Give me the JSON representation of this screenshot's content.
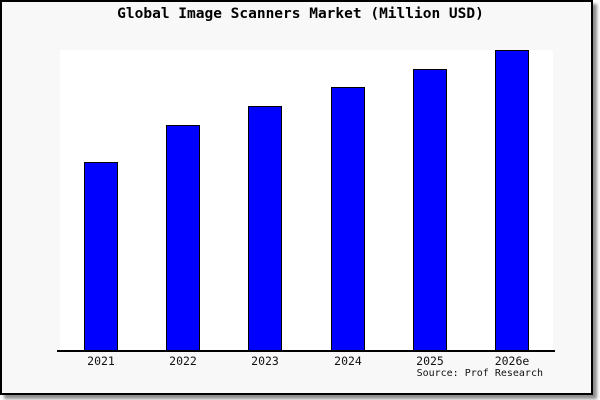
{
  "title": "Global Image Scanners Market (Million USD)",
  "source_note": "Source: Prof Research",
  "colors": {
    "page_background": "#f8f8f8",
    "plot_background": "#ffffff",
    "frame_border": "#000000",
    "axis": "#000000",
    "text": "#000000"
  },
  "chart_data": {
    "type": "bar",
    "title": "Global Image Scanners Market (Million USD)",
    "unit": "Million USD",
    "categories": [
      "2021",
      "2022",
      "2023",
      "2024",
      "2025",
      "2026e"
    ],
    "values_percent_of_max": [
      62.8,
      75.2,
      81.5,
      87.7,
      93.7,
      100
    ],
    "value_labels_shown": false,
    "xlabel": "",
    "ylabel": "",
    "y_axis_shown": false,
    "gridlines": false,
    "legend_position": "none",
    "bar_color": "#0000ff",
    "bar_border_color": "#000000",
    "source_note": "Source: Prof Research"
  }
}
